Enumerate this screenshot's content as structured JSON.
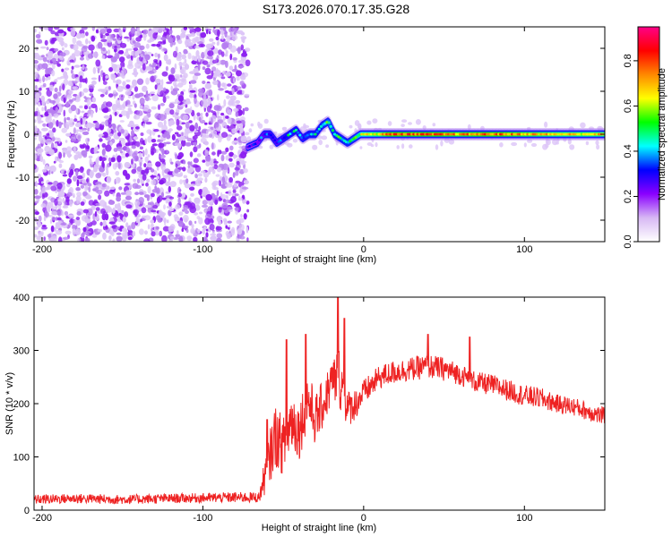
{
  "title": "S173.2026.070.17.35.G28",
  "chart_data": [
    {
      "type": "heatmap",
      "title": "S173.2026.070.17.35.G28",
      "xlabel": "Height of straight line (km)",
      "ylabel": "Frequency (Hz)",
      "xlim": [
        -205,
        150
      ],
      "ylim": [
        -25,
        25
      ],
      "xticks": [
        -200,
        -100,
        0,
        100
      ],
      "yticks": [
        -20,
        -10,
        0,
        10,
        20
      ],
      "colorbar": {
        "label": "Normalized spectral amplitude",
        "range": [
          0,
          0.95
        ],
        "ticks": [
          0.0,
          0.2,
          0.4,
          0.6,
          0.8
        ],
        "colors": [
          "#ffffff",
          "#d7b8f4",
          "#8a00ff",
          "#0000ff",
          "#00ffff",
          "#00ff00",
          "#ffff00",
          "#ff8800",
          "#ff0000",
          "#ff0088"
        ]
      },
      "noise_region_km": [
        -205,
        -72
      ],
      "signal_track": {
        "x": [
          -72,
          -66,
          -62,
          -58,
          -54,
          -50,
          -46,
          -42,
          -38,
          -34,
          -30,
          -26,
          -22,
          -18,
          -14,
          -10,
          -6,
          -2,
          0,
          10,
          20,
          40,
          60,
          80,
          100,
          120,
          150
        ],
        "frequency": [
          -3,
          -2,
          0,
          0,
          -2,
          -1,
          0,
          1,
          -1,
          0,
          0,
          2,
          3,
          0,
          -1,
          -2,
          -1,
          0,
          0,
          0,
          0,
          0,
          0,
          0,
          0,
          0,
          0
        ],
        "amplitude": [
          0.25,
          0.3,
          0.35,
          0.4,
          0.35,
          0.4,
          0.45,
          0.45,
          0.4,
          0.45,
          0.45,
          0.5,
          0.55,
          0.5,
          0.5,
          0.5,
          0.55,
          0.6,
          0.65,
          0.7,
          0.85,
          0.8,
          0.75,
          0.8,
          0.75,
          0.7,
          0.7
        ]
      }
    },
    {
      "type": "line",
      "xlabel": "Height of straight line (km)",
      "ylabel": "SNR (10 * v/v)",
      "xlim": [
        -205,
        150
      ],
      "ylim": [
        0,
        400
      ],
      "xticks": [
        -200,
        -100,
        0,
        100
      ],
      "yticks": [
        0,
        100,
        200,
        300,
        400
      ],
      "line_color": "#ee2222",
      "series": [
        {
          "name": "SNR",
          "x": [
            -205,
            -180,
            -150,
            -120,
            -100,
            -80,
            -65,
            -60,
            -55,
            -50,
            -45,
            -40,
            -35,
            -30,
            -25,
            -20,
            -15,
            -10,
            -5,
            0,
            10,
            20,
            30,
            40,
            50,
            60,
            70,
            80,
            90,
            100,
            110,
            120,
            130,
            140,
            150
          ],
          "values": [
            20,
            22,
            20,
            22,
            23,
            24,
            24,
            80,
            140,
            120,
            170,
            150,
            210,
            170,
            200,
            240,
            250,
            190,
            200,
            220,
            250,
            260,
            265,
            270,
            265,
            255,
            240,
            235,
            225,
            215,
            210,
            200,
            195,
            185,
            175
          ],
          "noise": [
            18,
            18,
            18,
            18,
            18,
            20,
            20,
            90,
            120,
            110,
            120,
            110,
            110,
            100,
            90,
            90,
            120,
            70,
            60,
            50,
            45,
            45,
            45,
            45,
            45,
            40,
            40,
            40,
            40,
            40,
            40,
            35,
            35,
            35,
            35
          ],
          "spikes": [
            {
              "x": -60,
              "value": 170
            },
            {
              "x": -48,
              "value": 320
            },
            {
              "x": -36,
              "value": 330
            },
            {
              "x": -16,
              "value": 410
            },
            {
              "x": -12,
              "value": 360
            },
            {
              "x": 40,
              "value": 330
            },
            {
              "x": 66,
              "value": 325
            }
          ]
        }
      ]
    }
  ]
}
